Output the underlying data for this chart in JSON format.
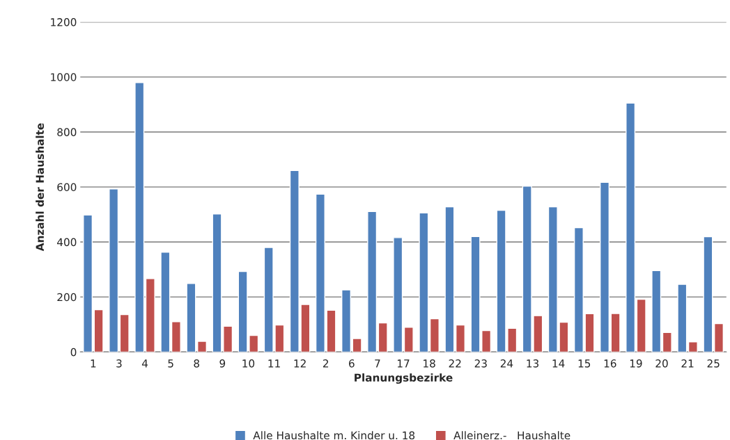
{
  "chart_data": {
    "type": "bar",
    "xlabel": "Planungsbezirke",
    "ylabel": "Anzahl der Haushalte",
    "categories": [
      "1",
      "3",
      "4",
      "5",
      "8",
      "9",
      "10",
      "11",
      "12",
      "2",
      "6",
      "7",
      "17",
      "18",
      "22",
      "23",
      "24",
      "13",
      "14",
      "15",
      "16",
      "19",
      "20",
      "21",
      "25"
    ],
    "series": [
      {
        "name": "Alle Haushalte m. Kinder u. 18",
        "color": "#4f81bd",
        "values": [
          498,
          593,
          980,
          363,
          249,
          502,
          293,
          380,
          660,
          574,
          226,
          511,
          416,
          506,
          528,
          420,
          515,
          603,
          528,
          452,
          617,
          905,
          296,
          246,
          419
        ]
      },
      {
        "name": "Alleinerz.-   Haushalte",
        "color": "#c0504d",
        "values": [
          154,
          136,
          267,
          110,
          39,
          94,
          60,
          98,
          173,
          152,
          49,
          106,
          90,
          121,
          98,
          78,
          86,
          132,
          108,
          139,
          140,
          192,
          71,
          37,
          103
        ]
      }
    ],
    "ylim": [
      0,
      1200
    ],
    "yticks": [
      0,
      200,
      400,
      600,
      800,
      1000,
      1200
    ],
    "grid": "y",
    "legend": "bottom"
  }
}
